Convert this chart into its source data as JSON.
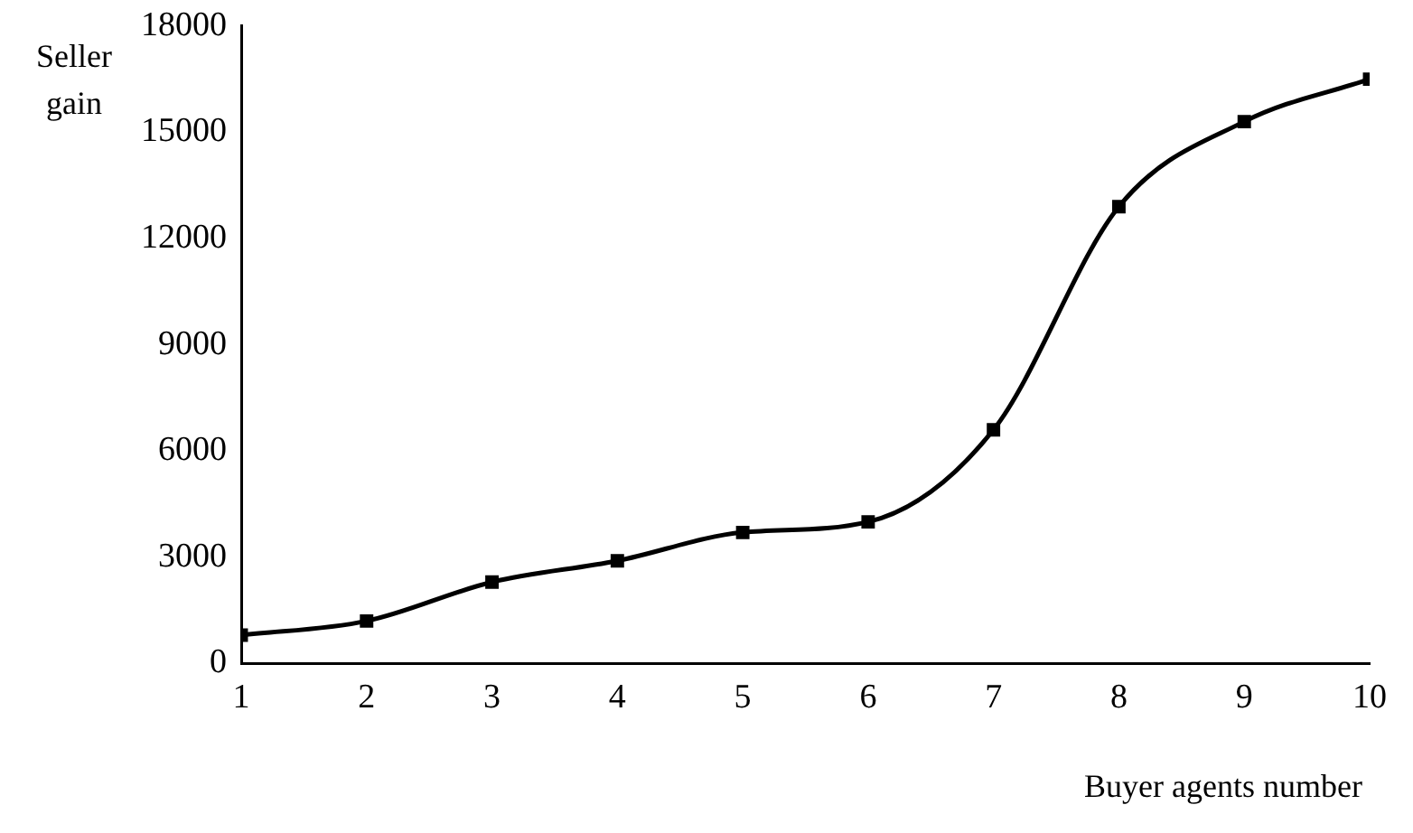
{
  "chart_data": {
    "type": "line",
    "xlabel": "Buyer agents number",
    "ylabel": "Seller gain",
    "x": [
      1,
      2,
      3,
      4,
      5,
      6,
      7,
      8,
      9,
      10
    ],
    "series": [
      {
        "color": "#000000",
        "values": [
          800,
          1200,
          2300,
          2900,
          3700,
          4000,
          6600,
          12900,
          15300,
          16500
        ]
      }
    ],
    "xlim": [
      1,
      10
    ],
    "xticks": [
      1,
      2,
      3,
      4,
      5,
      6,
      7,
      8,
      9,
      10
    ],
    "ylim": [
      0,
      18000
    ],
    "yticks": [
      0,
      3000,
      6000,
      9000,
      12000,
      15000,
      18000
    ],
    "grid": false,
    "legend": false,
    "marker": "square",
    "line_style": "solid"
  }
}
